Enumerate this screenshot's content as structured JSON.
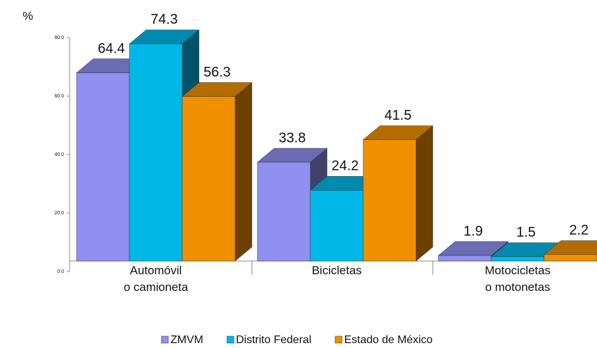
{
  "chart_data": {
    "type": "bar3d",
    "y_label": "%",
    "categories": [
      "Automóvil\no camioneta",
      "Bicicletas",
      "Motocicletas\no motonetas"
    ],
    "series": [
      {
        "name": "ZMVM",
        "color": "#9090f0",
        "values": [
          64.4,
          33.8,
          1.9
        ]
      },
      {
        "name": "Distrito Federal",
        "color": "#00b8e8",
        "values": [
          74.3,
          24.2,
          1.5
        ]
      },
      {
        "name": "Estado de México",
        "color": "#f09000",
        "values": [
          56.3,
          41.5,
          2.2
        ]
      }
    ],
    "ylim": [
      0,
      80
    ],
    "yticks": [
      {
        "value": 0,
        "label": "0.0"
      },
      {
        "value": 20,
        "label": "20.0"
      },
      {
        "value": 40,
        "label": "40.0"
      },
      {
        "value": 60,
        "label": "60.0"
      },
      {
        "value": 80,
        "label": "80.0"
      }
    ]
  }
}
